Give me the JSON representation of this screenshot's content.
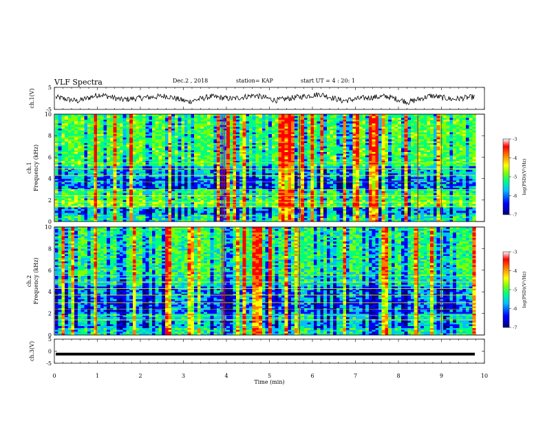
{
  "header": {
    "title": "VLF Spectra",
    "date": "Dec.2 , 2018",
    "station": "station= KAP",
    "start_ut": "start UT =  4 : 20: 1"
  },
  "chart_data": [
    {
      "type": "line",
      "ylabel": "ch.1(V)",
      "ylim": [
        -5,
        5
      ],
      "yticks": [
        "5",
        "-5"
      ],
      "xlim": [
        0,
        10
      ],
      "description_series": "noisy waveform centered near 0 V spanning roughly -3 to +3 V",
      "series": [
        {
          "values": [
            0.5,
            -1.2,
            1.8,
            -0.6,
            0.3,
            1.1,
            -1.5,
            0.8,
            -0.2,
            1.4,
            -0.9,
            0.6,
            1.9,
            -1.1,
            0.2,
            0.9,
            -1.7,
            1.2,
            -0.4,
            0.7
          ]
        }
      ]
    },
    {
      "type": "heatmap",
      "ylabel": "ch.1\nFrequency (kHz)",
      "ylim": [
        0,
        10
      ],
      "yticks": [
        "0",
        "2",
        "4",
        "6",
        "8",
        "10"
      ],
      "xlim": [
        0,
        10
      ],
      "colorbar": {
        "label": "log(PSD)(V²/Hz)",
        "range": [
          -7,
          -3
        ],
        "ticks": [
          "-3",
          "-4",
          "-5",
          "-6",
          "-7"
        ]
      }
    },
    {
      "type": "heatmap",
      "ylabel": "ch.2\nFrequency (kHz)",
      "ylim": [
        0,
        10
      ],
      "yticks": [
        "0",
        "2",
        "4",
        "6",
        "8",
        "10"
      ],
      "xlim": [
        0,
        10
      ],
      "colorbar": {
        "label": "log(PSD)(V²/Hz)",
        "range": [
          -7,
          -3
        ],
        "ticks": [
          "-3",
          "-4",
          "-5",
          "-6",
          "-7"
        ]
      }
    },
    {
      "type": "line",
      "ylabel": "ch.3(V)",
      "ylim": [
        -5,
        5
      ],
      "yticks": [
        "5",
        "0",
        "-5"
      ],
      "xlim": [
        0,
        10
      ],
      "series": [
        {
          "values": [
            -1.2,
            -1.2,
            -1.2,
            -1.2,
            -1.2,
            -1.2,
            -1.2,
            -1.2,
            -1.2,
            -1.2,
            -1.2
          ]
        }
      ]
    }
  ],
  "xaxis": {
    "label": "Time (min)",
    "ticks": [
      "0",
      "1",
      "2",
      "3",
      "4",
      "5",
      "6",
      "7",
      "8",
      "9",
      "10"
    ]
  },
  "colors": {
    "line": "#000000",
    "colormap": [
      "#00007f",
      "#0000ff",
      "#00bfff",
      "#00ff7f",
      "#7fff00",
      "#ffff00",
      "#ff7f00",
      "#ff0000",
      "#ffffff"
    ]
  }
}
